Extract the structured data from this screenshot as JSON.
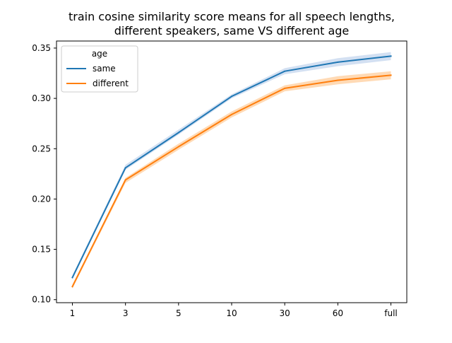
{
  "chart_data": {
    "type": "line",
    "title_lines": [
      "train cosine similarity score means for all speech lengths,",
      "different speakers, same VS different age"
    ],
    "xlabel": "",
    "ylabel": "",
    "categories": [
      "1",
      "3",
      "5",
      "10",
      "30",
      "60",
      "full"
    ],
    "ylim": [
      0.097,
      0.357
    ],
    "yticks": [
      0.1,
      0.15,
      0.2,
      0.25,
      0.3,
      0.35
    ],
    "ytick_labels": [
      "0.10",
      "0.15",
      "0.20",
      "0.25",
      "0.30",
      "0.35"
    ],
    "grid": false,
    "legend": {
      "title": "age",
      "placement": "top-left"
    },
    "series": [
      {
        "name": "same",
        "color": "#1f77b4",
        "band_color": "#aec7e8",
        "values": [
          0.122,
          0.231,
          0.266,
          0.302,
          0.327,
          0.336,
          0.342
        ],
        "ci_low": [
          0.12,
          0.229,
          0.264,
          0.3,
          0.324,
          0.332,
          0.338
        ],
        "ci_high": [
          0.124,
          0.234,
          0.269,
          0.304,
          0.33,
          0.34,
          0.346
        ]
      },
      {
        "name": "different",
        "color": "#ff7f0e",
        "band_color": "#ffbb78",
        "values": [
          0.113,
          0.219,
          0.252,
          0.284,
          0.31,
          0.318,
          0.323
        ],
        "ci_low": [
          0.111,
          0.216,
          0.249,
          0.281,
          0.307,
          0.314,
          0.319
        ],
        "ci_high": [
          0.115,
          0.221,
          0.255,
          0.287,
          0.313,
          0.322,
          0.327
        ]
      }
    ]
  }
}
